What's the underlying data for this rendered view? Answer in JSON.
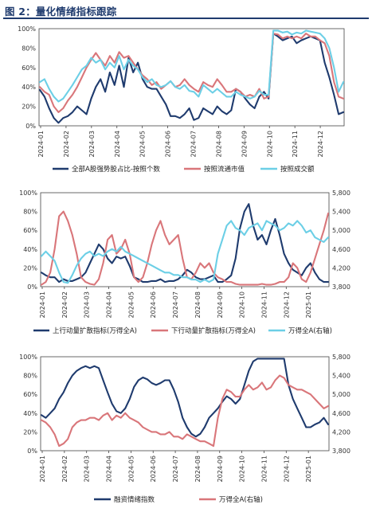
{
  "title": "图 2：量化情绪指标跟踪",
  "colors": {
    "navy": "#1f3b6e",
    "red": "#d9767a",
    "cyan": "#6ccfe6"
  },
  "chart_data": [
    {
      "type": "line",
      "x_ticks": [
        "2024-01",
        "2024-02",
        "2024-03",
        "2024-04",
        "2024-05",
        "2024-06",
        "2024-07",
        "2024-08",
        "2024-09",
        "2024-10",
        "2024-11",
        "2024-12"
      ],
      "y_ticks": [
        "0%",
        "20%",
        "40%",
        "60%",
        "80%",
        "100%"
      ],
      "ylim": [
        0,
        100
      ],
      "series": [
        {
          "name": "全部A股强势股占比-按照个数",
          "color": "#1f3b6e",
          "values": [
            37,
            30,
            18,
            8,
            3,
            8,
            10,
            14,
            20,
            16,
            12,
            28,
            40,
            48,
            35,
            55,
            42,
            62,
            40,
            70,
            55,
            65,
            48,
            40,
            38,
            38,
            30,
            22,
            10,
            10,
            8,
            12,
            18,
            6,
            8,
            18,
            15,
            12,
            20,
            15,
            12,
            16,
            38,
            35,
            28,
            22,
            18,
            30,
            35,
            28,
            95,
            92,
            88,
            90,
            92,
            85,
            88,
            90,
            92,
            90,
            88,
            65,
            50,
            32,
            12,
            14
          ]
        },
        {
          "name": "按照流通市值",
          "color": "#d9767a",
          "values": [
            40,
            35,
            32,
            20,
            14,
            18,
            26,
            32,
            40,
            50,
            60,
            68,
            75,
            68,
            62,
            72,
            65,
            76,
            70,
            72,
            65,
            58,
            52,
            48,
            42,
            45,
            38,
            42,
            46,
            40,
            42,
            48,
            42,
            38,
            35,
            45,
            42,
            40,
            48,
            42,
            35,
            35,
            38,
            35,
            30,
            32,
            30,
            38,
            28,
            30,
            95,
            94,
            90,
            92,
            90,
            92,
            90,
            95,
            92,
            92,
            88,
            85,
            72,
            45,
            30,
            28
          ]
        },
        {
          "name": "按照成交额",
          "color": "#6ccfe6",
          "values": [
            45,
            48,
            38,
            30,
            25,
            28,
            35,
            42,
            50,
            58,
            62,
            70,
            65,
            68,
            58,
            65,
            60,
            72,
            58,
            68,
            62,
            58,
            50,
            45,
            48,
            42,
            40,
            42,
            46,
            40,
            38,
            42,
            36,
            35,
            30,
            42,
            38,
            34,
            38,
            34,
            30,
            30,
            35,
            32,
            30,
            28,
            30,
            36,
            32,
            32,
            98,
            98,
            96,
            97,
            94,
            96,
            95,
            98,
            97,
            96,
            95,
            90,
            80,
            60,
            35,
            45
          ]
        }
      ]
    },
    {
      "type": "line",
      "x_ticks": [
        "2024-01",
        "2024-02",
        "2024-03",
        "2024-04",
        "2024-05",
        "2024-06",
        "2024-07",
        "2024-08",
        "2024-09",
        "2024-10",
        "2024-11",
        "2024-12",
        "2025-01"
      ],
      "y_ticks": [
        "0%",
        "20%",
        "40%",
        "60%",
        "80%",
        "100%"
      ],
      "y2_ticks": [
        "3,800",
        "4,200",
        "4,600",
        "5,000",
        "5,400",
        "5,800"
      ],
      "ylim": [
        0,
        100
      ],
      "y2lim": [
        3800,
        5800
      ],
      "series": [
        {
          "name": "上行动量扩散指标(万得全A)",
          "color": "#1f3b6e",
          "axis": "left",
          "values": [
            15,
            12,
            10,
            10,
            5,
            8,
            6,
            6,
            8,
            10,
            15,
            25,
            35,
            45,
            40,
            30,
            25,
            32,
            30,
            32,
            22,
            10,
            8,
            5,
            5,
            6,
            6,
            8,
            5,
            6,
            6,
            8,
            12,
            18,
            15,
            10,
            8,
            8,
            10,
            12,
            5,
            5,
            8,
            12,
            30,
            62,
            80,
            88,
            65,
            50,
            55,
            45,
            60,
            72,
            55,
            35,
            25,
            18,
            15,
            12,
            20,
            25,
            15,
            8,
            5,
            5
          ]
        },
        {
          "name": "下行动量扩散指标(万得全A)",
          "color": "#d9767a",
          "axis": "left",
          "values": [
            2,
            5,
            15,
            40,
            75,
            80,
            70,
            55,
            35,
            10,
            5,
            3,
            2,
            8,
            25,
            50,
            55,
            35,
            40,
            50,
            35,
            10,
            5,
            10,
            25,
            45,
            60,
            70,
            55,
            45,
            50,
            55,
            30,
            10,
            8,
            15,
            25,
            20,
            25,
            15,
            10,
            8,
            5,
            5,
            3,
            2,
            2,
            2,
            2,
            2,
            3,
            2,
            2,
            3,
            5,
            5,
            10,
            25,
            20,
            8,
            5,
            15,
            30,
            45,
            60,
            78
          ]
        },
        {
          "name": "万得全A(右轴)",
          "color": "#6ccfe6",
          "axis": "right",
          "values": [
            4450,
            4550,
            4450,
            4350,
            4100,
            3900,
            3880,
            4050,
            4250,
            4400,
            4500,
            4550,
            4450,
            4500,
            4450,
            4550,
            4600,
            4550,
            4650,
            4550,
            4500,
            4450,
            4400,
            4350,
            4300,
            4250,
            4200,
            4150,
            4100,
            4100,
            4050,
            4050,
            4000,
            4000,
            3950,
            3950,
            3900,
            3950,
            3900,
            3950,
            4500,
            4800,
            5100,
            5200,
            5050,
            5000,
            4900,
            5050,
            5100,
            5150,
            5000,
            5200,
            5150,
            5100,
            5000,
            5050,
            5150,
            5100,
            5200,
            5100,
            4950,
            5000,
            4850,
            4800,
            4750,
            4850
          ]
        }
      ]
    },
    {
      "type": "line",
      "x_ticks": [
        "2024-01",
        "2024-02",
        "2024-03",
        "2024-04",
        "2024-05",
        "2024-06",
        "2024-07",
        "2024-08",
        "2024-09",
        "2024-10",
        "2024-11",
        "2024-12",
        "2025-01"
      ],
      "y_ticks": [
        "0%",
        "20%",
        "40%",
        "60%",
        "80%",
        "100%"
      ],
      "y2_ticks": [
        "3,800",
        "4,200",
        "4,600",
        "5,000",
        "5,400",
        "5,800"
      ],
      "ylim": [
        0,
        100
      ],
      "y2lim": [
        3800,
        5800
      ],
      "series": [
        {
          "name": "融资情绪指数",
          "color": "#1f3b6e",
          "axis": "left",
          "values": [
            38,
            35,
            40,
            45,
            55,
            62,
            72,
            80,
            85,
            88,
            90,
            88,
            90,
            88,
            75,
            62,
            50,
            42,
            40,
            45,
            55,
            68,
            75,
            78,
            76,
            72,
            70,
            72,
            75,
            75,
            65,
            52,
            35,
            25,
            18,
            15,
            18,
            25,
            35,
            40,
            45,
            52,
            58,
            55,
            50,
            55,
            70,
            85,
            95,
            98,
            98,
            98,
            98,
            98,
            98,
            98,
            70,
            55,
            45,
            35,
            25,
            25,
            28,
            30,
            35,
            28
          ]
        },
        {
          "name": "万得全A(右轴)",
          "color": "#d9767a",
          "axis": "right",
          "values": [
            4450,
            4400,
            4300,
            4150,
            3900,
            3950,
            4050,
            4300,
            4400,
            4450,
            4450,
            4500,
            4500,
            4450,
            4550,
            4600,
            4450,
            4550,
            4500,
            4600,
            4500,
            4450,
            4400,
            4300,
            4250,
            4200,
            4200,
            4150,
            4150,
            4200,
            4100,
            4100,
            4050,
            4150,
            4100,
            4050,
            4000,
            4000,
            3950,
            3900,
            4500,
            4900,
            5100,
            5050,
            4950,
            4950,
            5100,
            5200,
            5100,
            5150,
            5250,
            5100,
            5150,
            5300,
            5400,
            5350,
            5200,
            5150,
            5100,
            5100,
            5050,
            5000,
            4900,
            4800,
            4700,
            4750
          ]
        }
      ]
    }
  ]
}
